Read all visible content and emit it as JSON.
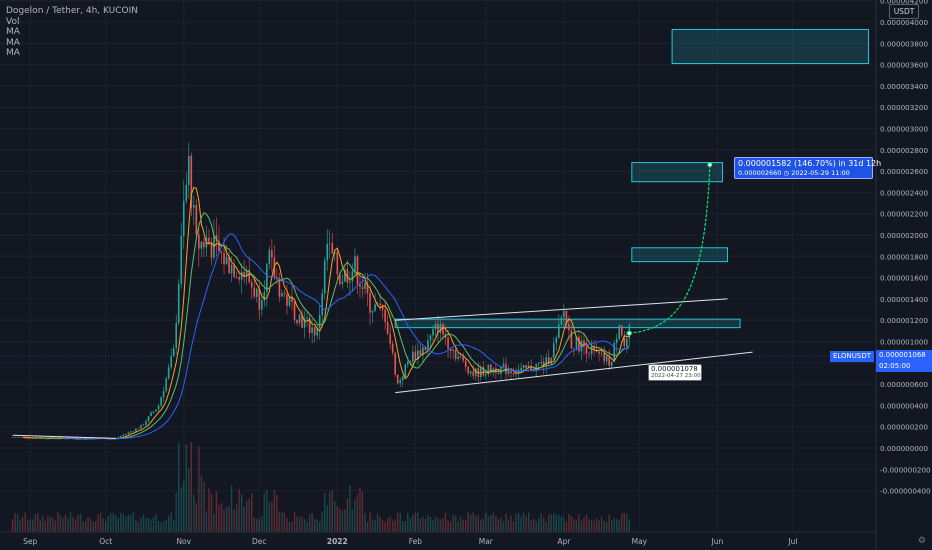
{
  "legend": {
    "title": "Dogelon / Tether, 4h, KUCOIN",
    "vol": "Vol",
    "ma1": "MA",
    "ma2": "MA",
    "ma3": "MA"
  },
  "scale": {
    "currency": "USDT"
  },
  "current_price": {
    "symbol": "ELONUSDT",
    "price": "0.000001068",
    "countdown": "02:05:00"
  },
  "projection_label": {
    "line1": "0.000001582 (146.70%) in 31d 12h",
    "line2": "0.000002660 ◷ 2022-05-29  11:00"
  },
  "anchor_label": {
    "line1": "0.000001078",
    "line2": "2022-04-27 23:00"
  },
  "colors": {
    "background": "#131722",
    "grid": "#1e222d",
    "bull": "#26a69a",
    "bear": "#ef5350",
    "ma_orange": "#f7a21b",
    "ma_green": "#5fbf68",
    "ma_blue": "#2962ff",
    "box_fill": "#26c6da",
    "projection": "#00e676"
  },
  "chart_data": {
    "type": "candlestick",
    "title": "Dogelon / Tether, 4h, KUCOIN",
    "x_ticks": [
      "Sep",
      "Oct",
      "Nov",
      "Dec",
      "2022",
      "Feb",
      "Mar",
      "Apr",
      "May",
      "Jun",
      "Jul"
    ],
    "y_ticks": [
      "0.000004200",
      "0.000004000",
      "0.000003800",
      "0.000003600",
      "0.000003400",
      "0.000003200",
      "0.000003000",
      "0.000002800",
      "0.000002600",
      "0.000002400",
      "0.000002200",
      "0.000002000",
      "0.000001800",
      "0.000001600",
      "0.000001400",
      "0.000001200",
      "0.000001000",
      "0.000000800",
      "0.000000600",
      "0.000000400",
      "0.000000200",
      "0.000000000",
      "-0.000000200",
      "-0.000000400"
    ],
    "ylim": [
      -4.5e-07,
      4.3e-06
    ],
    "price_path": [
      {
        "date": "2021-08-25",
        "close": 1e-07
      },
      {
        "date": "2021-09-15",
        "close": 9e-08
      },
      {
        "date": "2021-10-05",
        "close": 9e-08
      },
      {
        "date": "2021-10-15",
        "close": 2e-07
      },
      {
        "date": "2021-10-22",
        "close": 4e-07
      },
      {
        "date": "2021-10-28",
        "close": 9e-07
      },
      {
        "date": "2021-11-01",
        "close": 2.25e-06
      },
      {
        "date": "2021-11-03",
        "close": 2.65e-06
      },
      {
        "date": "2021-11-06",
        "close": 1.9e-06
      },
      {
        "date": "2021-11-10",
        "close": 1.95e-06
      },
      {
        "date": "2021-11-18",
        "close": 1.75e-06
      },
      {
        "date": "2021-11-25",
        "close": 1.65e-06
      },
      {
        "date": "2021-12-01",
        "close": 1.4e-06
      },
      {
        "date": "2021-12-05",
        "close": 1.75e-06
      },
      {
        "date": "2021-12-10",
        "close": 1.45e-06
      },
      {
        "date": "2021-12-18",
        "close": 1.2e-06
      },
      {
        "date": "2021-12-24",
        "close": 1.08e-06
      },
      {
        "date": "2021-12-28",
        "close": 1.9e-06
      },
      {
        "date": "2022-01-02",
        "close": 1.6e-06
      },
      {
        "date": "2022-01-08",
        "close": 1.7e-06
      },
      {
        "date": "2022-01-14",
        "close": 1.35e-06
      },
      {
        "date": "2022-01-20",
        "close": 1.25e-06
      },
      {
        "date": "2022-01-25",
        "close": 6e-07
      },
      {
        "date": "2022-01-30",
        "close": 8.5e-07
      },
      {
        "date": "2022-02-05",
        "close": 9.5e-07
      },
      {
        "date": "2022-02-10",
        "close": 1.15e-06
      },
      {
        "date": "2022-02-18",
        "close": 8.5e-07
      },
      {
        "date": "2022-02-24",
        "close": 7e-07
      },
      {
        "date": "2022-03-05",
        "close": 7.5e-07
      },
      {
        "date": "2022-03-15",
        "close": 7.2e-07
      },
      {
        "date": "2022-03-25",
        "close": 8e-07
      },
      {
        "date": "2022-03-29",
        "close": 1e-06
      },
      {
        "date": "2022-04-01",
        "close": 1.28e-06
      },
      {
        "date": "2022-04-04",
        "close": 1e-06
      },
      {
        "date": "2022-04-10",
        "close": 9.5e-07
      },
      {
        "date": "2022-04-15",
        "close": 8.5e-07
      },
      {
        "date": "2022-04-20",
        "close": 8e-07
      },
      {
        "date": "2022-04-23",
        "close": 1.22e-06
      },
      {
        "date": "2022-04-25",
        "close": 9.5e-07
      },
      {
        "date": "2022-04-27",
        "close": 1.08e-06
      }
    ],
    "trendlines": [
      {
        "from": {
          "date": "2022-01-24",
          "price": 1.2e-06
        },
        "to": {
          "date": "2022-06-05",
          "price": 1.4e-06
        }
      },
      {
        "from": {
          "date": "2022-01-24",
          "price": 5.2e-07
        },
        "to": {
          "date": "2022-06-15",
          "price": 9e-07
        }
      },
      {
        "from": {
          "date": "2021-08-25",
          "price": 1.2e-07
        },
        "to": {
          "date": "2021-10-05",
          "price": 9e-08
        }
      }
    ],
    "zones": [
      {
        "from": "2022-01-24",
        "to": "2022-06-10",
        "top": 1.21e-06,
        "bottom": 1.13e-06
      },
      {
        "from": "2022-04-28",
        "to": "2022-06-05",
        "top": 1.88e-06,
        "bottom": 1.75e-06
      },
      {
        "from": "2022-04-28",
        "to": "2022-06-03",
        "top": 2.68e-06,
        "bottom": 2.5e-06
      },
      {
        "from": "2022-05-14",
        "to": "2022-07-31",
        "top": 3.93e-06,
        "bottom": 3.61e-06
      }
    ],
    "projection": {
      "from": {
        "date": "2022-04-27",
        "price": 1.078e-06
      },
      "to": {
        "date": "2022-05-29",
        "price": 2.66e-06
      },
      "change": "0.000001582 (146.70%) in 31d 12h"
    }
  }
}
